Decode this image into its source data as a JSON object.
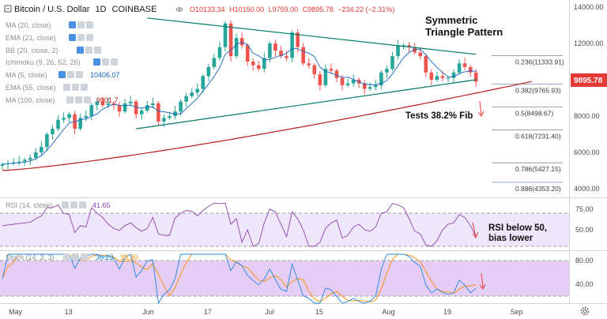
{
  "header": {
    "symbol": "Bitcoin / U.S. Dollar",
    "interval": "1D",
    "exchange": "COINBASE",
    "open": "O10133.34",
    "high": "H10150.00",
    "low": "L9759.00",
    "close": "C9895.78",
    "change": "−234.22 (−2.31%)"
  },
  "indicators": [
    {
      "label": "MA (20, close)",
      "value": ""
    },
    {
      "label": "EMA (21, close)",
      "value": ""
    },
    {
      "label": "BB (20, close, 2)",
      "value": ""
    },
    {
      "label": "Ichimoku (9, 26, 52, 26)",
      "value": ""
    },
    {
      "label": "MA (5, close)",
      "value": "10406.07"
    },
    {
      "label": "EMA (55, close)",
      "value": ""
    },
    {
      "label": "MA (100, close)",
      "value": "9901.7"
    }
  ],
  "annotations": {
    "pattern_line1": "Symmetric",
    "pattern_line2": "Triangle Pattern",
    "fib_test": "Tests 38.2% Fib",
    "rsi_line1": "RSI below 50,",
    "rsi_line2": "bias lower"
  },
  "price_badge": "9895.78",
  "rsi_legend": {
    "label": "RSI (14, close)",
    "value": "41.65"
  },
  "stoch_legend": {
    "label": "Stoch (14, 3, 3)",
    "k": "30.23",
    "d": "38.30"
  },
  "colors": {
    "bull": "#26a69a",
    "bear": "#ef5350",
    "ma100": "#b71c1c",
    "ma5": "#1565c0",
    "triangle": "#00796b",
    "badge": "#e53935",
    "rsi_line": "#8e44ad",
    "rsi_fill": "#e9defa",
    "stoch_fill": "#e3c6f5",
    "stoch_k": "#1e88e5",
    "stoch_d": "#fb8c00",
    "arrow": "#e53935"
  },
  "chart_data": {
    "type": "candlestick",
    "title": "Bitcoin / U.S. Dollar 1D COINBASE",
    "x_ticks": [
      "May",
      "13",
      "Jun",
      "17",
      "Jul",
      "15",
      "Aug",
      "19",
      "Sep"
    ],
    "price_ticks": [
      "14000.00",
      "12000.00",
      "10000.00",
      "8000.00",
      "6000.00",
      "4000.00"
    ],
    "price_range": [
      3500,
      14200
    ],
    "closes": [
      5350,
      5400,
      5450,
      5500,
      5600,
      5700,
      6000,
      6300,
      7000,
      7300,
      7800,
      7900,
      8100,
      7300,
      7900,
      8000,
      8600,
      8800,
      8600,
      8700,
      8600,
      8250,
      8700,
      8800,
      8100,
      8300,
      8600,
      8700,
      7700,
      7900,
      8000,
      8250,
      8800,
      9100,
      9300,
      9500,
      10200,
      10700,
      11200,
      11800,
      13100,
      11300,
      12300,
      11900,
      11000,
      10800,
      10600,
      11200,
      12000,
      11600,
      11300,
      11200,
      12600,
      11800,
      10900,
      10800,
      10300,
      9700,
      10600,
      10500,
      10100,
      9700,
      9800,
      10000,
      9800,
      9500,
      9600,
      9700,
      10400,
      10600,
      11300,
      11900,
      11900,
      11800,
      11500,
      11300,
      10400,
      10000,
      10200,
      10100,
      10100,
      10400,
      10900,
      10700,
      10400,
      9900
    ],
    "ma100_start": 5000,
    "ma100_end": 9901.7,
    "ma5_last": 10406.07,
    "triangle_upper": [
      [
        26,
        13400
      ],
      [
        85,
        11400
      ]
    ],
    "triangle_lower": [
      [
        24,
        7300
      ],
      [
        85,
        10000
      ]
    ],
    "fib_levels": [
      {
        "ratio": "0.236",
        "value": "11333.91",
        "label": "0.236(11333.91)"
      },
      {
        "ratio": "0.382",
        "value": "9765.93",
        "label": "0.382(9765.93)"
      },
      {
        "ratio": "0.5",
        "value": "8498.67",
        "label": "0.5(8498.67)"
      },
      {
        "ratio": "0.618",
        "value": "7231.40",
        "label": "0.618(7231.40)"
      },
      {
        "ratio": "0.786",
        "value": "5427.15",
        "label": "0.786(5427.15)"
      },
      {
        "ratio": "0.886",
        "value": "4353.20",
        "label": "0.886(4353.20)"
      }
    ],
    "rsi": {
      "ticks": [
        "75.00",
        "50.00"
      ],
      "last": 41.65,
      "band": [
        30,
        70
      ]
    },
    "stoch": {
      "ticks": [
        "80.00",
        "40.00"
      ],
      "k_last": 30.23,
      "d_last": 38.3,
      "band": [
        20,
        80
      ]
    }
  }
}
